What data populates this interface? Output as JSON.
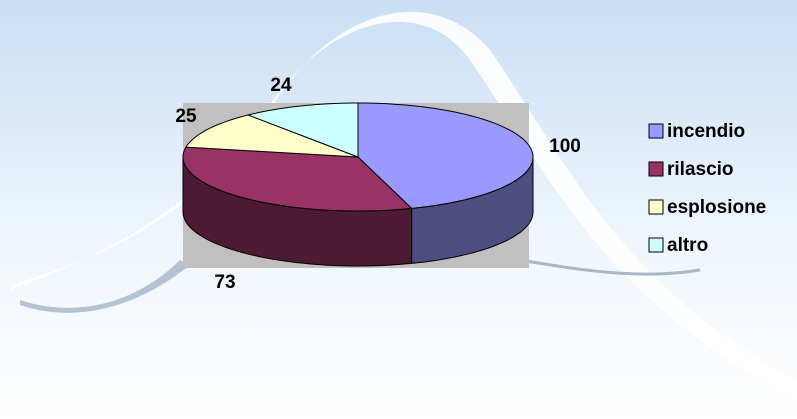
{
  "chart_data": {
    "type": "pie",
    "categories": [
      "incendio",
      "rilascio",
      "esplosione",
      "altro"
    ],
    "values": [
      100,
      73,
      25,
      24
    ],
    "colors": [
      "#9999ff",
      "#993366",
      "#ffffcc",
      "#ccffff"
    ],
    "side_colors": [
      "#4d4d80",
      "#4d1a33",
      "#80806a",
      "#6a8080"
    ],
    "legend": "right"
  }
}
